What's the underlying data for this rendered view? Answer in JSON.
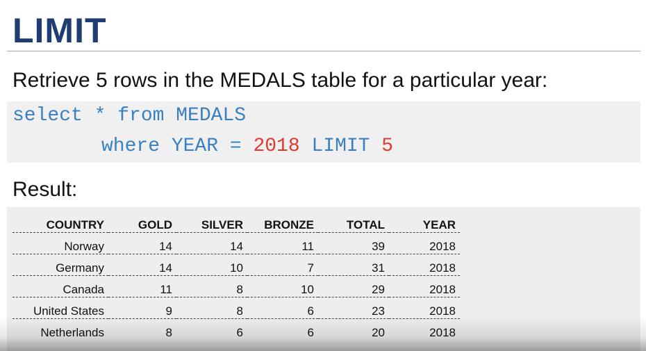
{
  "slide": {
    "title": "LIMIT",
    "subtitle": "Retrieve 5 rows in the MEDALS table for a particular year:",
    "code": {
      "line1": "select * from MEDALS",
      "line2_prefix": "where YEAR = ",
      "line2_year": "2018",
      "line2_mid": " LIMIT ",
      "line2_limit": "5"
    },
    "result_label": "Result:"
  },
  "table": {
    "headers": [
      "COUNTRY",
      "GOLD",
      "SILVER",
      "BRONZE",
      "TOTAL",
      "YEAR"
    ],
    "rows": [
      [
        "Norway",
        "14",
        "14",
        "11",
        "39",
        "2018"
      ],
      [
        "Germany",
        "14",
        "10",
        "7",
        "31",
        "2018"
      ],
      [
        "Canada",
        "11",
        "8",
        "10",
        "29",
        "2018"
      ],
      [
        "United States",
        "9",
        "8",
        "6",
        "23",
        "2018"
      ],
      [
        "Netherlands",
        "8",
        "6",
        "6",
        "20",
        "2018"
      ]
    ]
  },
  "colors": {
    "title": "#1f3d73",
    "code_keyword": "#3a7fc2",
    "code_number": "#e03a2e",
    "code_bg": "#f0f0f0",
    "table_bg": "#eeeeee"
  }
}
